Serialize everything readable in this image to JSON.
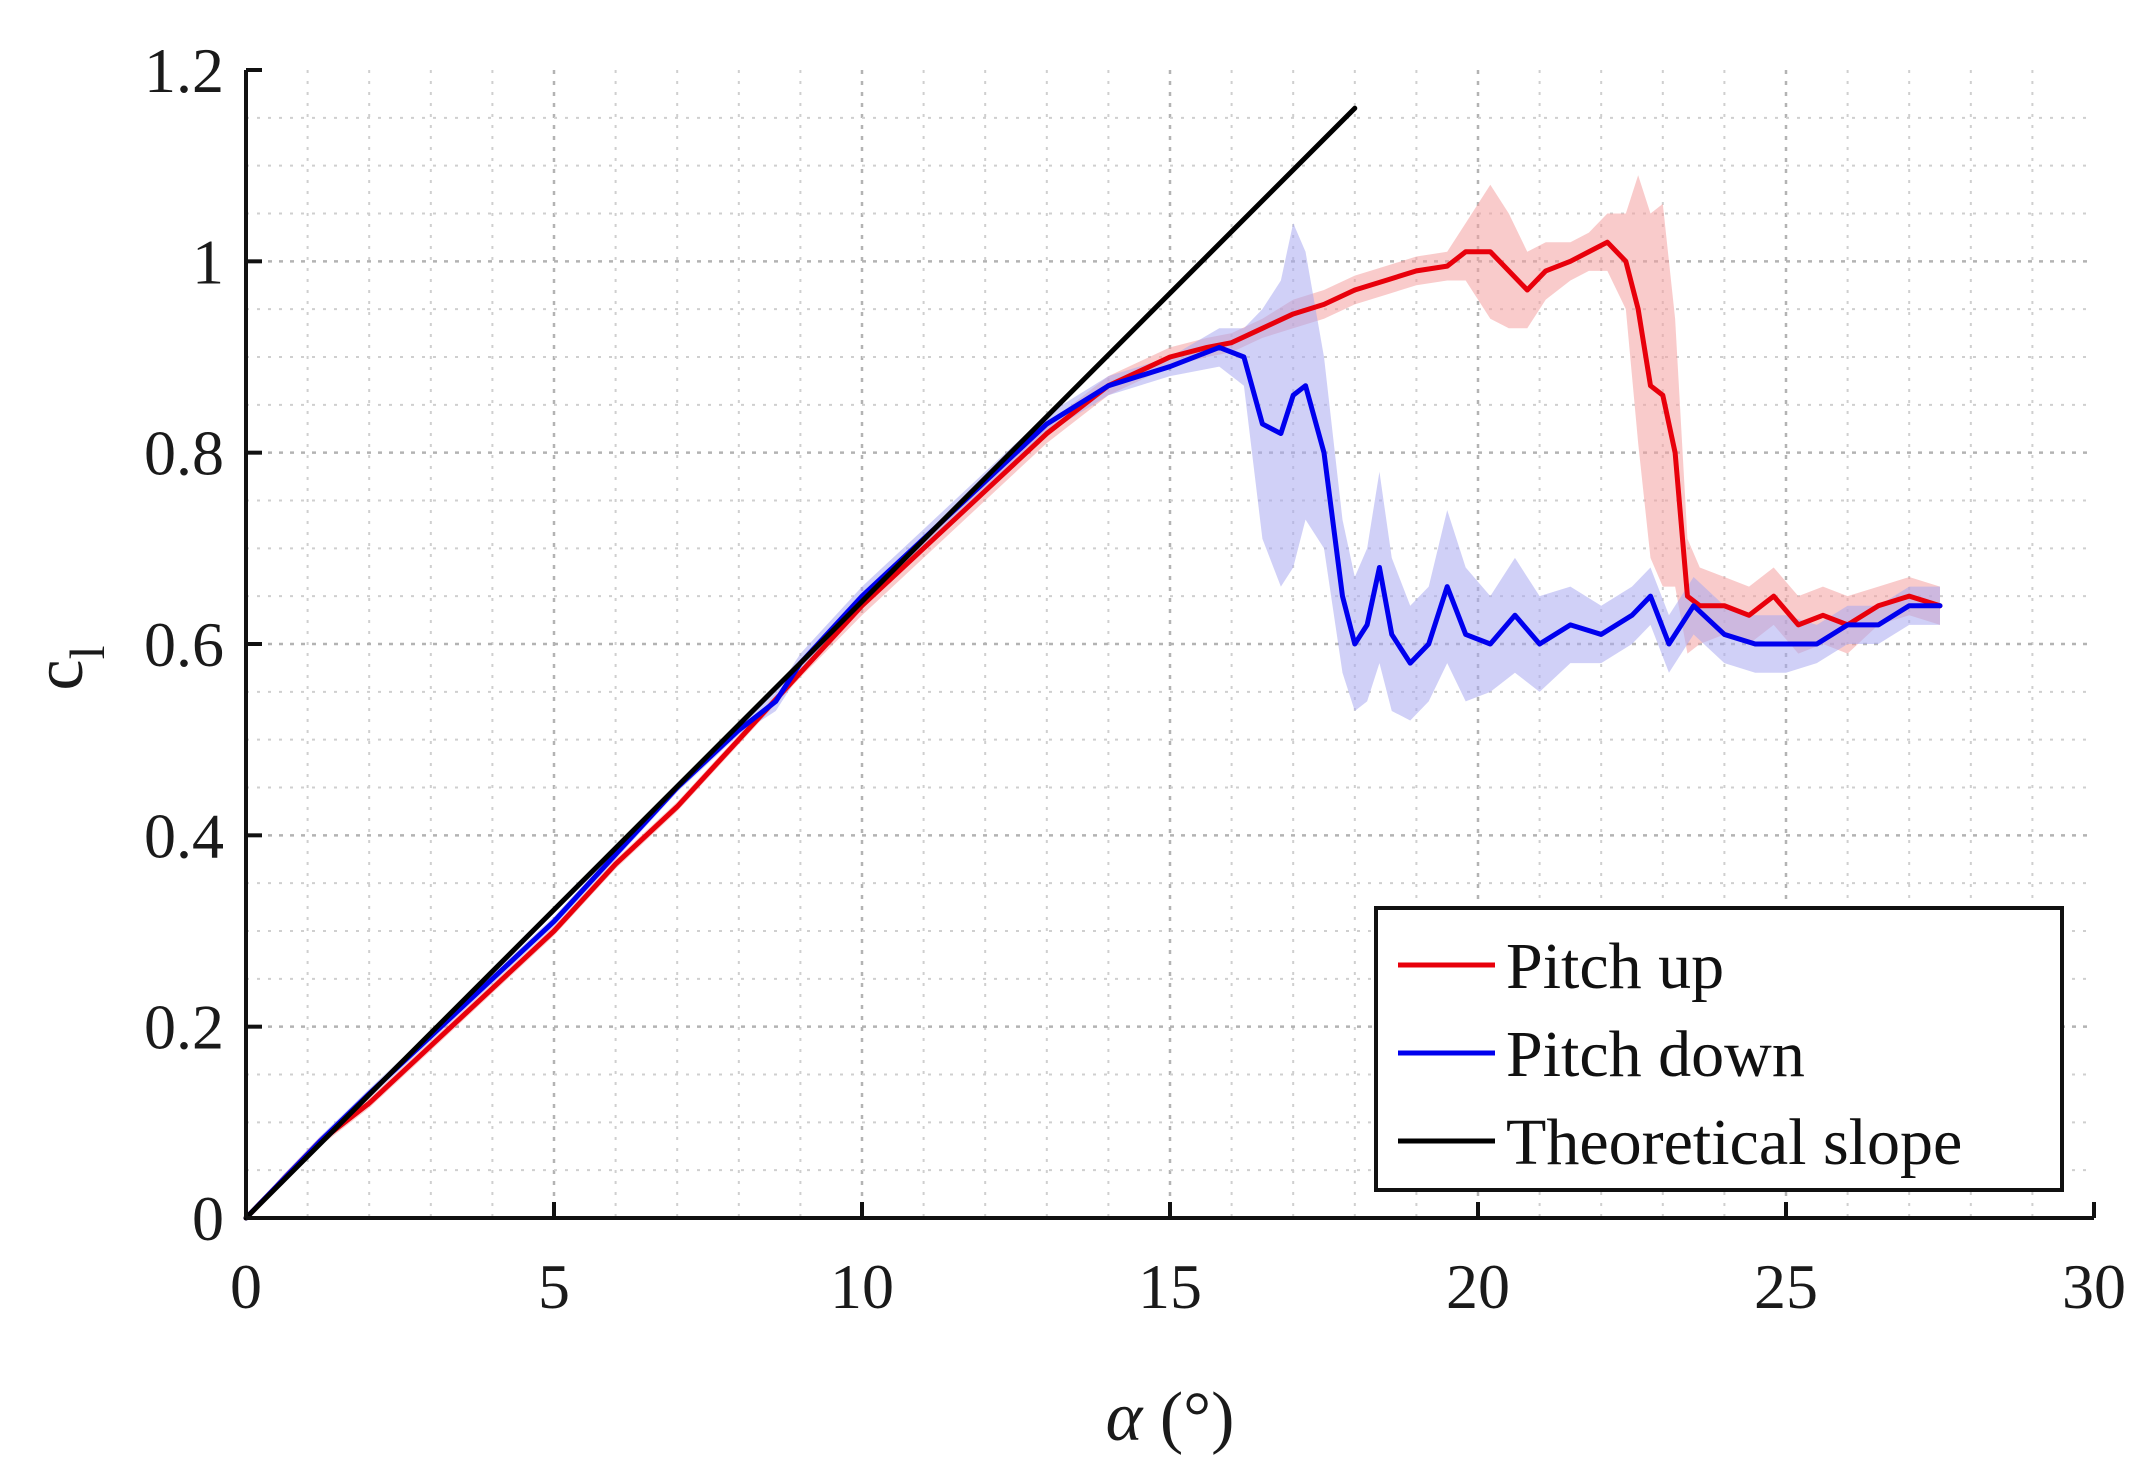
{
  "chart_data": {
    "type": "line",
    "xlabel_symbol": "α",
    "xlabel_unit": " (°)",
    "ylabel_main": "c",
    "ylabel_sub": "l",
    "xlim": [
      0,
      30
    ],
    "ylim": [
      0,
      1.2
    ],
    "x_ticks": [
      0,
      5,
      10,
      15,
      20,
      25,
      30
    ],
    "y_ticks": [
      0,
      0.2,
      0.4,
      0.6,
      0.8,
      1,
      1.2
    ],
    "x_tick_labels": [
      "0",
      "5",
      "10",
      "15",
      "20",
      "25",
      "30"
    ],
    "y_tick_labels": [
      "0",
      "0.2",
      "0.4",
      "0.6",
      "0.8",
      "1",
      "1.2"
    ],
    "minor_x_step": 1,
    "minor_y_step": 0.05,
    "grid": true,
    "legend_position": "bottom-right",
    "series": [
      {
        "name": "Pitch up",
        "color": "#e8000b",
        "band_color": "#f4a0a0",
        "x": [
          0,
          0.6,
          1.2,
          2,
          3,
          4,
          5,
          6,
          7,
          8,
          9,
          10,
          11,
          12,
          13,
          14,
          15,
          15.6,
          16,
          16.5,
          17,
          17.5,
          18,
          18.5,
          19,
          19.5,
          19.8,
          20.2,
          20.5,
          20.8,
          21.1,
          21.5,
          21.8,
          22.1,
          22.4,
          22.6,
          22.8,
          23.0,
          23.2,
          23.4,
          23.6,
          24.0,
          24.4,
          24.8,
          25.2,
          25.6,
          26.0,
          26.5,
          27.0,
          27.5
        ],
        "y": [
          0,
          0.04,
          0.08,
          0.12,
          0.18,
          0.24,
          0.3,
          0.37,
          0.43,
          0.5,
          0.57,
          0.64,
          0.7,
          0.76,
          0.82,
          0.87,
          0.9,
          0.91,
          0.915,
          0.93,
          0.945,
          0.955,
          0.97,
          0.98,
          0.99,
          0.995,
          1.01,
          1.01,
          0.99,
          0.97,
          0.99,
          1.0,
          1.01,
          1.02,
          1.0,
          0.95,
          0.87,
          0.86,
          0.8,
          0.65,
          0.64,
          0.64,
          0.63,
          0.65,
          0.62,
          0.63,
          0.62,
          0.64,
          0.65,
          0.64
        ],
        "band_spread": [
          0,
          0.005,
          0.005,
          0.005,
          0.005,
          0.005,
          0.005,
          0.005,
          0.005,
          0.005,
          0.005,
          0.01,
          0.01,
          0.01,
          0.01,
          0.01,
          0.01,
          0.01,
          0.01,
          0.01,
          0.015,
          0.015,
          0.015,
          0.015,
          0.015,
          0.015,
          0.03,
          0.07,
          0.06,
          0.04,
          0.03,
          0.02,
          0.02,
          0.03,
          0.05,
          0.14,
          0.18,
          0.2,
          0.14,
          0.06,
          0.04,
          0.03,
          0.03,
          0.03,
          0.03,
          0.03,
          0.03,
          0.02,
          0.02,
          0.02
        ]
      },
      {
        "name": "Pitch down",
        "color": "#0000ee",
        "band_color": "#a9a9f0",
        "x": [
          0,
          0.6,
          1.2,
          2,
          3,
          4,
          5,
          6,
          7,
          8,
          8.6,
          9,
          10,
          11,
          12,
          13,
          14,
          15,
          15.8,
          16.2,
          16.5,
          16.8,
          17.0,
          17.2,
          17.5,
          17.8,
          18.0,
          18.2,
          18.4,
          18.6,
          18.9,
          19.2,
          19.5,
          19.8,
          20.2,
          20.6,
          21.0,
          21.5,
          22.0,
          22.5,
          22.8,
          23.1,
          23.5,
          24.0,
          24.5,
          25.0,
          25.5,
          26.0,
          26.5,
          27.0,
          27.5
        ],
        "y": [
          0,
          0.04,
          0.08,
          0.13,
          0.19,
          0.25,
          0.31,
          0.38,
          0.45,
          0.51,
          0.54,
          0.58,
          0.65,
          0.71,
          0.77,
          0.83,
          0.87,
          0.89,
          0.91,
          0.9,
          0.83,
          0.82,
          0.86,
          0.87,
          0.8,
          0.65,
          0.6,
          0.62,
          0.68,
          0.61,
          0.58,
          0.6,
          0.66,
          0.61,
          0.6,
          0.63,
          0.6,
          0.62,
          0.61,
          0.63,
          0.65,
          0.6,
          0.64,
          0.61,
          0.6,
          0.6,
          0.6,
          0.62,
          0.62,
          0.64,
          0.64
        ],
        "band_spread": [
          0,
          0.005,
          0.005,
          0.005,
          0.005,
          0.005,
          0.005,
          0.005,
          0.005,
          0.005,
          0.01,
          0.01,
          0.01,
          0.01,
          0.01,
          0.01,
          0.01,
          0.01,
          0.02,
          0.03,
          0.12,
          0.16,
          0.18,
          0.14,
          0.1,
          0.08,
          0.07,
          0.08,
          0.1,
          0.08,
          0.06,
          0.06,
          0.08,
          0.07,
          0.05,
          0.06,
          0.05,
          0.04,
          0.03,
          0.03,
          0.03,
          0.03,
          0.03,
          0.03,
          0.03,
          0.03,
          0.02,
          0.02,
          0.02,
          0.02,
          0.02
        ]
      },
      {
        "name": "Theoretical slope",
        "color": "#000000",
        "x": [
          0,
          18
        ],
        "y": [
          0,
          1.16
        ]
      }
    ]
  }
}
